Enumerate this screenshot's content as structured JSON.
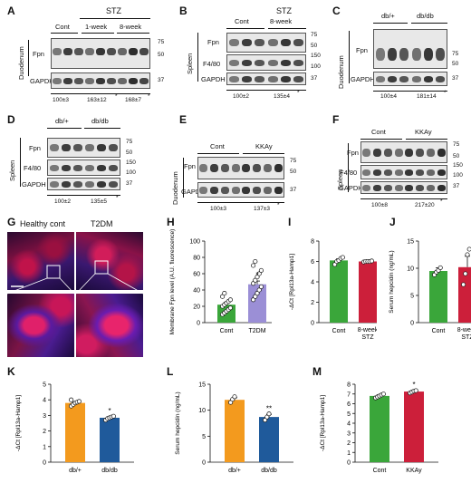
{
  "panels": {
    "A": {
      "label": "A",
      "tissue": "Duodenum",
      "groups": [
        "Cont",
        "1-week",
        "8-week"
      ],
      "header": "STZ",
      "rows": [
        "Fpn",
        "GAPDH"
      ],
      "markers": [
        "75",
        "50",
        "37"
      ],
      "quant": [
        "100±3",
        "163±12",
        "168±7"
      ],
      "stars": [
        "*",
        "*"
      ]
    },
    "B": {
      "label": "B",
      "tissue": "Spleen",
      "groups": [
        "Cont",
        "8-week"
      ],
      "header": "STZ",
      "rows": [
        "Fpn",
        "F4/80",
        "GAPDH"
      ],
      "markers": [
        "75",
        "50",
        "150",
        "100",
        "37"
      ],
      "quant": [
        "100±2",
        "135±4"
      ],
      "stars": [
        "*"
      ]
    },
    "C": {
      "label": "C",
      "tissue": "Duodenum",
      "groups": [
        "db/+",
        "db/db"
      ],
      "rows": [
        "Fpn",
        "GAPDH"
      ],
      "markers": [
        "75",
        "50",
        "37"
      ],
      "quant": [
        "100±4",
        "181±14"
      ],
      "stars": [
        "*"
      ]
    },
    "D": {
      "label": "D",
      "tissue": "Spleen",
      "groups": [
        "db/+",
        "db/db"
      ],
      "rows": [
        "Fpn",
        "F4/80",
        "GAPDH"
      ],
      "markers": [
        "75",
        "50",
        "150",
        "100",
        "37"
      ],
      "quant": [
        "100±2",
        "135±5"
      ],
      "stars": [
        "*"
      ]
    },
    "E": {
      "label": "E",
      "tissue": "Duodenum",
      "groups": [
        "Cont",
        "KKAy"
      ],
      "rows": [
        "Fpn",
        "GAPDH"
      ],
      "markers": [
        "75",
        "50",
        "37"
      ],
      "quant": [
        "100±3",
        "137±3"
      ],
      "stars": [
        "*"
      ]
    },
    "F": {
      "label": "F",
      "tissue": "Spleen",
      "groups": [
        "Cont",
        "KKAy"
      ],
      "rows": [
        "Fpn",
        "F4/80",
        "GAPDH"
      ],
      "markers": [
        "75",
        "50",
        "150",
        "100",
        "37"
      ],
      "quant": [
        "100±8",
        "217±20"
      ],
      "stars": [
        "*"
      ]
    },
    "G": {
      "label": "G",
      "titles": [
        "Healthy cont",
        "T2DM"
      ]
    },
    "H": {
      "label": "H"
    },
    "I": {
      "label": "I"
    },
    "J": {
      "label": "J"
    },
    "K": {
      "label": "K"
    },
    "L": {
      "label": "L"
    },
    "M": {
      "label": "M"
    }
  },
  "chart_data": [
    {
      "panel": "H",
      "type": "bar",
      "categories": [
        "Cont",
        "T2DM"
      ],
      "values": [
        22,
        47
      ],
      "errors": [
        3,
        4
      ],
      "colors": [
        "#3aa63a",
        "#9b8fd6"
      ],
      "points": [
        [
          10,
          12,
          14,
          16,
          18,
          20,
          22,
          24,
          26,
          28,
          32,
          36
        ],
        [
          28,
          32,
          36,
          40,
          44,
          48,
          52,
          56,
          60,
          64,
          70,
          75
        ]
      ],
      "ylabel": "Membrane Fpn level (A.U. fluorescence)",
      "ylim": [
        0,
        100
      ],
      "ticks": [
        0,
        20,
        40,
        60,
        80,
        100
      ],
      "stars": [
        "",
        "*"
      ]
    },
    {
      "panel": "I",
      "type": "bar",
      "categories": [
        "Cont",
        "8-week STZ"
      ],
      "values": [
        6.1,
        6.0
      ],
      "errors": [
        0.15,
        0.05
      ],
      "colors": [
        "#3aa63a",
        "#cc1f3a"
      ],
      "points": [
        [
          5.7,
          6.0,
          6.1,
          6.3,
          6.4
        ],
        [
          5.95,
          6.0,
          6.0,
          6.0,
          6.05
        ]
      ],
      "ylabel": "-ΔCt [Rpl13a-Hamp1]",
      "ylim": [
        0,
        8
      ],
      "ticks": [
        0,
        2,
        4,
        6,
        8
      ],
      "stars": [
        "",
        ""
      ]
    },
    {
      "panel": "J",
      "type": "bar",
      "categories": [
        "Cont",
        "8-week STZ"
      ],
      "values": [
        9.5,
        10.2
      ],
      "errors": [
        0.6,
        2.0
      ],
      "colors": [
        "#3aa63a",
        "#cc1f3a"
      ],
      "points": [
        [
          8.8,
          9.3,
          9.6,
          10.1
        ],
        [
          7.0,
          9.0,
          12.5,
          13.5
        ]
      ],
      "ylabel": "Serum hepcidin (ng/mL)",
      "ylim": [
        0,
        15
      ],
      "ticks": [
        0,
        5,
        10,
        15
      ],
      "stars": [
        "",
        ""
      ]
    },
    {
      "panel": "K",
      "type": "bar",
      "categories": [
        "db/+",
        "db/db"
      ],
      "values": [
        3.8,
        2.85
      ],
      "errors": [
        0.08,
        0.06
      ],
      "colors": [
        "#f39a1e",
        "#1f5a9b"
      ],
      "points": [
        [
          3.6,
          3.7,
          3.8,
          3.85,
          3.9,
          4.0
        ],
        [
          2.7,
          2.8,
          2.85,
          2.9,
          2.95
        ]
      ],
      "ylabel": "-ΔCt [Rpl13a-Hamp1]",
      "ylim": [
        0,
        5
      ],
      "ticks": [
        0,
        1,
        2,
        3,
        4,
        5
      ],
      "stars": [
        "",
        "*"
      ]
    },
    {
      "panel": "L",
      "type": "bar",
      "categories": [
        "db/+",
        "db/db"
      ],
      "values": [
        12,
        8.7
      ],
      "errors": [
        0.4,
        0.5
      ],
      "colors": [
        "#f39a1e",
        "#1f5a9b"
      ],
      "points": [
        [
          11.5,
          12.1,
          12.6
        ],
        [
          8.1,
          8.7,
          9.3
        ]
      ],
      "ylabel": "Serum hepcidin (ng/mL)",
      "ylim": [
        0,
        15
      ],
      "ticks": [
        0,
        5,
        10,
        15
      ],
      "stars": [
        "",
        "**"
      ]
    },
    {
      "panel": "M",
      "type": "bar",
      "categories": [
        "Cont",
        "KKAy"
      ],
      "values": [
        6.8,
        7.25
      ],
      "errors": [
        0.12,
        0.08
      ],
      "colors": [
        "#3aa63a",
        "#cc1f3a"
      ],
      "points": [
        [
          6.6,
          6.7,
          6.8,
          6.9,
          7.0
        ],
        [
          7.1,
          7.2,
          7.3,
          7.35
        ]
      ],
      "ylabel": "-ΔCt [Rpl13a-Hamp1]",
      "ylim": [
        0,
        8
      ],
      "ticks": [
        0,
        1,
        2,
        3,
        4,
        5,
        6,
        7,
        8
      ],
      "stars": [
        "",
        "*"
      ]
    }
  ]
}
